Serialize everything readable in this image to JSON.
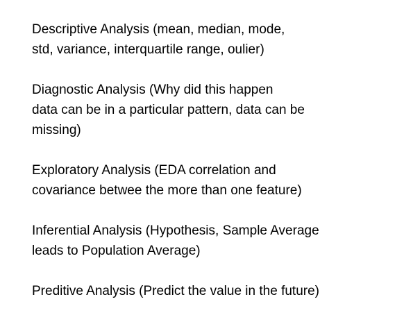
{
  "paragraphs": [
    {
      "lines": [
        "Descriptive Analysis (mean, median, mode,",
        "std, variance, interquartile range, oulier)"
      ]
    },
    {
      "lines": [
        "Diagnostic Analysis (Why did this happen",
        "data can be in a particular pattern, data can be",
        "missing)"
      ]
    },
    {
      "lines": [
        "Exploratory Analysis (EDA correlation and",
        "covariance betwee the more than one feature)"
      ]
    },
    {
      "lines": [
        "Inferential Analysis (Hypothesis, Sample Average",
        "leads to Population Average)"
      ]
    },
    {
      "lines": [
        "Preditive Analysis (Predict the value in the future)"
      ]
    }
  ]
}
